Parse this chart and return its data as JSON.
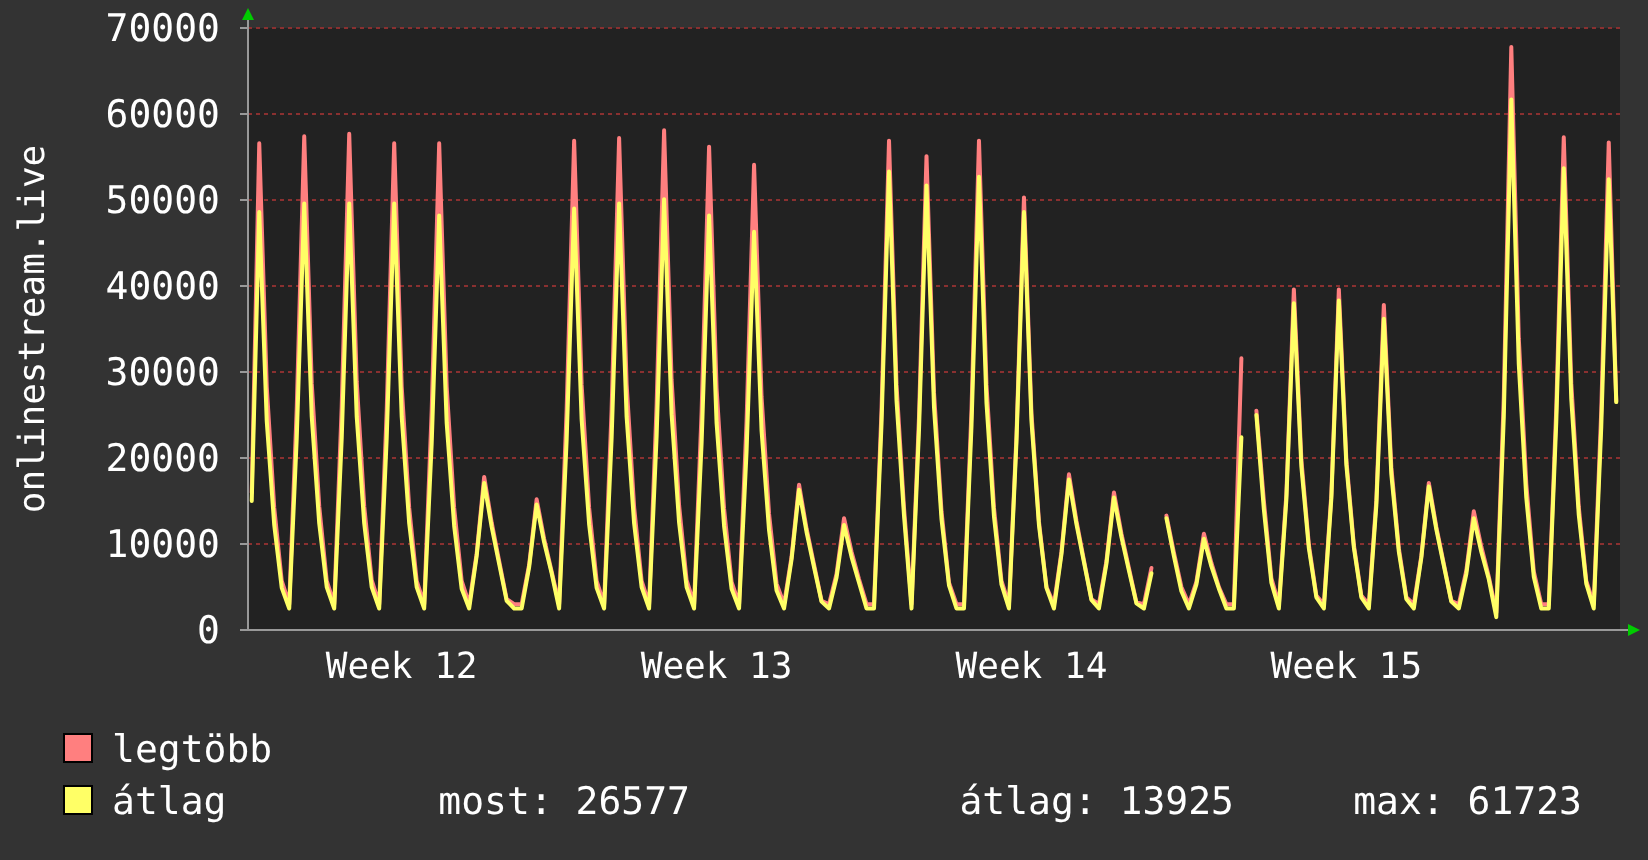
{
  "chart_data": {
    "type": "line",
    "ylabel": "onlinestream.live",
    "categories": [
      null,
      null,
      null,
      null,
      null,
      null,
      null,
      null,
      null,
      null,
      null,
      null,
      null,
      null,
      null,
      null,
      null,
      null,
      null,
      null,
      "Week 12",
      null,
      null,
      null,
      null,
      null,
      null,
      null,
      null,
      null,
      null,
      null,
      null,
      null,
      null,
      null,
      null,
      null,
      null,
      null,
      null,
      null,
      null,
      null,
      null,
      null,
      null,
      null,
      null,
      null,
      null,
      null,
      null,
      null,
      null,
      null,
      null,
      null,
      null,
      null,
      null,
      null,
      "Week 13",
      null,
      null,
      null,
      null,
      null,
      null,
      null,
      null,
      null,
      null,
      null,
      null,
      null,
      null,
      null,
      null,
      null,
      null,
      null,
      null,
      null,
      null,
      null,
      null,
      null,
      null,
      null,
      null,
      null,
      null,
      null,
      null,
      null,
      null,
      null,
      null,
      null,
      null,
      null,
      null,
      null,
      "Week 14",
      null,
      null,
      null,
      null,
      null,
      null,
      null,
      null,
      null,
      null,
      null,
      null,
      null,
      null,
      null,
      null,
      null,
      null,
      null,
      null,
      null,
      null,
      null,
      null,
      null,
      null,
      null,
      null,
      null,
      null,
      null,
      null,
      null,
      null,
      null,
      null,
      null,
      null,
      null,
      null,
      null,
      "Week 15",
      null,
      null,
      null,
      null,
      null,
      null,
      null,
      null,
      null,
      null,
      null,
      null,
      null,
      null,
      null,
      null,
      null,
      null,
      null,
      null,
      null,
      null,
      null,
      null,
      null,
      null,
      null,
      null,
      null,
      null,
      null,
      null,
      null,
      null,
      null,
      null
    ],
    "series": [
      {
        "name": "legtöbb",
        "color": "#ff7f7f",
        "values": [
          16000,
          56600,
          28300,
          14200,
          5700,
          3000,
          25800,
          57400,
          28700,
          14400,
          5700,
          3000,
          26000,
          57700,
          28900,
          14400,
          5800,
          3000,
          25500,
          56600,
          28300,
          14200,
          5700,
          3000,
          25500,
          56600,
          28300,
          14200,
          5700,
          3000,
          8900,
          17800,
          12500,
          8000,
          3600,
          3000,
          3000,
          7600,
          15200,
          10600,
          6800,
          3000,
          25600,
          56900,
          28500,
          14200,
          5700,
          3000,
          25700,
          57200,
          28600,
          14300,
          5700,
          3000,
          26100,
          58100,
          29100,
          14500,
          5800,
          3000,
          25300,
          56200,
          28100,
          14100,
          5600,
          3000,
          24300,
          54100,
          27100,
          13500,
          5400,
          3000,
          8500,
          16900,
          11800,
          7600,
          3400,
          3000,
          6500,
          13000,
          9100,
          5900,
          3000,
          3000,
          25600,
          56900,
          28500,
          14200,
          3000,
          24800,
          55100,
          27600,
          13800,
          5500,
          3000,
          3000,
          25600,
          56900,
          28500,
          14200,
          5700,
          3000,
          22600,
          50300,
          25200,
          12600,
          5000,
          3000,
          9100,
          18100,
          12700,
          8100,
          3600,
          3000,
          8000,
          16000,
          11200,
          7200,
          3200,
          3000,
          7200,
          null,
          13300,
          9000,
          5000,
          3000,
          5600,
          11200,
          7800,
          5000,
          3000,
          3000,
          31600,
          null,
          25500,
          15000,
          6000,
          3000,
          15800,
          39600,
          19800,
          9900,
          4000,
          3000,
          15800,
          39600,
          19800,
          9900,
          4000,
          3000,
          15100,
          37800,
          18900,
          9500,
          3800,
          3000,
          8600,
          17100,
          12000,
          7700,
          3400,
          3000,
          6900,
          13800,
          9700,
          6200,
          2000,
          27100,
          67800,
          33900,
          17000,
          6800,
          3000,
          3000,
          25800,
          57300,
          28700,
          14300,
          5700,
          3000,
          25500,
          56700,
          26600
        ]
      },
      {
        "name": "átlag",
        "color": "#ffff66",
        "values": [
          15000,
          48600,
          24300,
          12200,
          4900,
          2500,
          22300,
          49600,
          24800,
          12400,
          5000,
          2500,
          22300,
          49600,
          24800,
          12400,
          5000,
          2500,
          22300,
          49600,
          24800,
          12400,
          5000,
          2500,
          21700,
          48200,
          24100,
          12100,
          4800,
          2500,
          8600,
          17100,
          12000,
          7700,
          3400,
          2500,
          2500,
          7300,
          14600,
          10200,
          6600,
          2500,
          22100,
          49000,
          24500,
          12300,
          4900,
          2500,
          22300,
          49600,
          24800,
          12400,
          5000,
          2500,
          22500,
          50100,
          25100,
          12500,
          5000,
          2500,
          21700,
          48200,
          24100,
          12100,
          4800,
          2500,
          20800,
          46300,
          23200,
          11600,
          4600,
          2500,
          8200,
          16300,
          11400,
          7300,
          3300,
          2500,
          6100,
          12200,
          8500,
          5500,
          2500,
          2500,
          24000,
          53300,
          26700,
          13300,
          2500,
          23300,
          51700,
          25900,
          12900,
          5200,
          2500,
          2500,
          23700,
          52700,
          26400,
          13200,
          5300,
          2500,
          21900,
          48600,
          24300,
          12200,
          4900,
          2500,
          8800,
          17500,
          12300,
          7900,
          3500,
          2500,
          7700,
          15400,
          10800,
          6900,
          3100,
          2500,
          6600,
          null,
          13000,
          8600,
          4500,
          2500,
          5300,
          10600,
          7400,
          4800,
          2500,
          2500,
          22400,
          null,
          25000,
          14000,
          5500,
          2500,
          15200,
          38000,
          19000,
          9500,
          3800,
          2500,
          15300,
          38300,
          19200,
          9600,
          3800,
          2500,
          14500,
          36200,
          18100,
          9100,
          3600,
          2500,
          8400,
          16700,
          11700,
          7500,
          3300,
          2500,
          6500,
          13000,
          9100,
          5900,
          1500,
          24800,
          61700,
          30900,
          15400,
          6200,
          2500,
          2500,
          24200,
          53700,
          26900,
          13400,
          5400,
          2500,
          23600,
          52400,
          26500
        ]
      }
    ],
    "ylim": [
      0,
      70000
    ],
    "yticks": [
      0,
      10000,
      20000,
      30000,
      40000,
      50000,
      60000,
      70000
    ],
    "grid": "y",
    "legend": "bottom",
    "line_style": "solid",
    "marker": "none",
    "annotations": [
      "most: 26577",
      "átlag: 13925",
      "max: 61723"
    ]
  }
}
